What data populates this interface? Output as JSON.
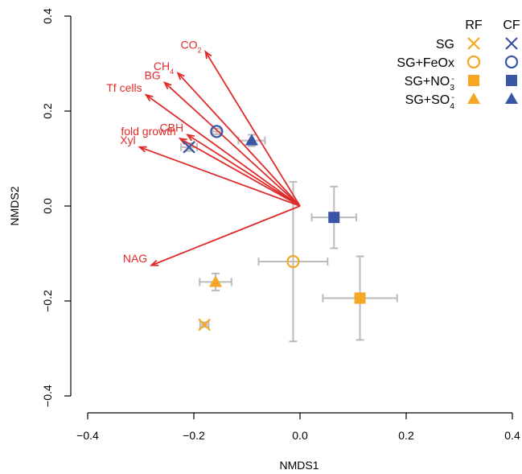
{
  "chart_data": {
    "type": "scatter",
    "xlabel": "NMDS1",
    "ylabel": "NMDS2",
    "xlim": [
      -0.4,
      0.4
    ],
    "ylim": [
      -0.4,
      0.4
    ],
    "x_ticks": [
      -0.4,
      -0.2,
      0.0,
      0.2,
      0.4
    ],
    "y_ticks": [
      -0.4,
      -0.2,
      0.0,
      0.2,
      0.4
    ],
    "x_tick_labels": [
      "−0.4",
      "−0.2",
      "0.0",
      "0.2",
      "0.4"
    ],
    "y_tick_labels": [
      "−0.4",
      "−0.2",
      "0.0",
      "0.2",
      "0.4"
    ],
    "grid": false,
    "legend": {
      "placement": "top-right",
      "column_headers": [
        "RF",
        "CF"
      ],
      "rows": [
        {
          "label": "SG",
          "label_sub": "",
          "label_sup": "",
          "marker": "x"
        },
        {
          "label": "SG+FeOx",
          "label_sub": "",
          "label_sup": "",
          "marker": "circle"
        },
        {
          "label": "SG+NO",
          "label_sub": "3",
          "label_sup": "-",
          "marker": "square"
        },
        {
          "label": "SG+SO",
          "label_sub": "4",
          "label_sup": "-",
          "marker": "triangle"
        }
      ]
    },
    "colors": {
      "RF": "#F5A623",
      "CF": "#3A55A4",
      "vector": "#E02B2B",
      "errorbar": "#BBBBBB"
    },
    "series": [
      {
        "group": "RF",
        "treatment": "SG",
        "marker": "x",
        "x": -0.18,
        "y": -0.25,
        "x_err": 0.008,
        "y_err": 0.005
      },
      {
        "group": "RF",
        "treatment": "SG+FeOx",
        "marker": "circle",
        "x": -0.013,
        "y": -0.117,
        "x_err": 0.065,
        "y_err": 0.168
      },
      {
        "group": "RF",
        "treatment": "SG+NO3-",
        "marker": "square",
        "x": 0.113,
        "y": -0.194,
        "x_err": 0.07,
        "y_err": 0.088
      },
      {
        "group": "RF",
        "treatment": "SG+SO4-",
        "marker": "triangle",
        "x": -0.159,
        "y": -0.16,
        "x_err": 0.03,
        "y_err": 0.018
      },
      {
        "group": "CF",
        "treatment": "SG",
        "marker": "x",
        "x": -0.209,
        "y": 0.124,
        "x_err": 0.015,
        "y_err": 0.008
      },
      {
        "group": "CF",
        "treatment": "SG+FeOx",
        "marker": "circle",
        "x": -0.157,
        "y": 0.157,
        "x_err": 0.008,
        "y_err": 0.006
      },
      {
        "group": "CF",
        "treatment": "SG+NO3-",
        "marker": "square",
        "x": 0.064,
        "y": -0.024,
        "x_err": 0.042,
        "y_err": 0.065
      },
      {
        "group": "CF",
        "treatment": "SG+SO4-",
        "marker": "triangle",
        "x": -0.091,
        "y": 0.138,
        "x_err": 0.025,
        "y_err": 0.012
      }
    ],
    "vectors": {
      "origin": [
        0.0,
        0.0
      ],
      "items": [
        {
          "label": "CO",
          "sub": "2",
          "x": -0.178,
          "y": 0.325
        },
        {
          "label": "CH",
          "sub": "4",
          "x": -0.23,
          "y": 0.28
        },
        {
          "label": "BG",
          "sub": "",
          "x": -0.255,
          "y": 0.26
        },
        {
          "label": "Tf cells",
          "sub": "",
          "x": -0.29,
          "y": 0.234
        },
        {
          "label": "CBH",
          "sub": "",
          "x": -0.212,
          "y": 0.15
        },
        {
          "label": "fold growth",
          "sub": "",
          "x": -0.226,
          "y": 0.142
        },
        {
          "label": "Xyl",
          "sub": "",
          "x": -0.302,
          "y": 0.124
        },
        {
          "label": "NAG",
          "sub": "",
          "x": -0.28,
          "y": -0.125
        }
      ]
    }
  }
}
